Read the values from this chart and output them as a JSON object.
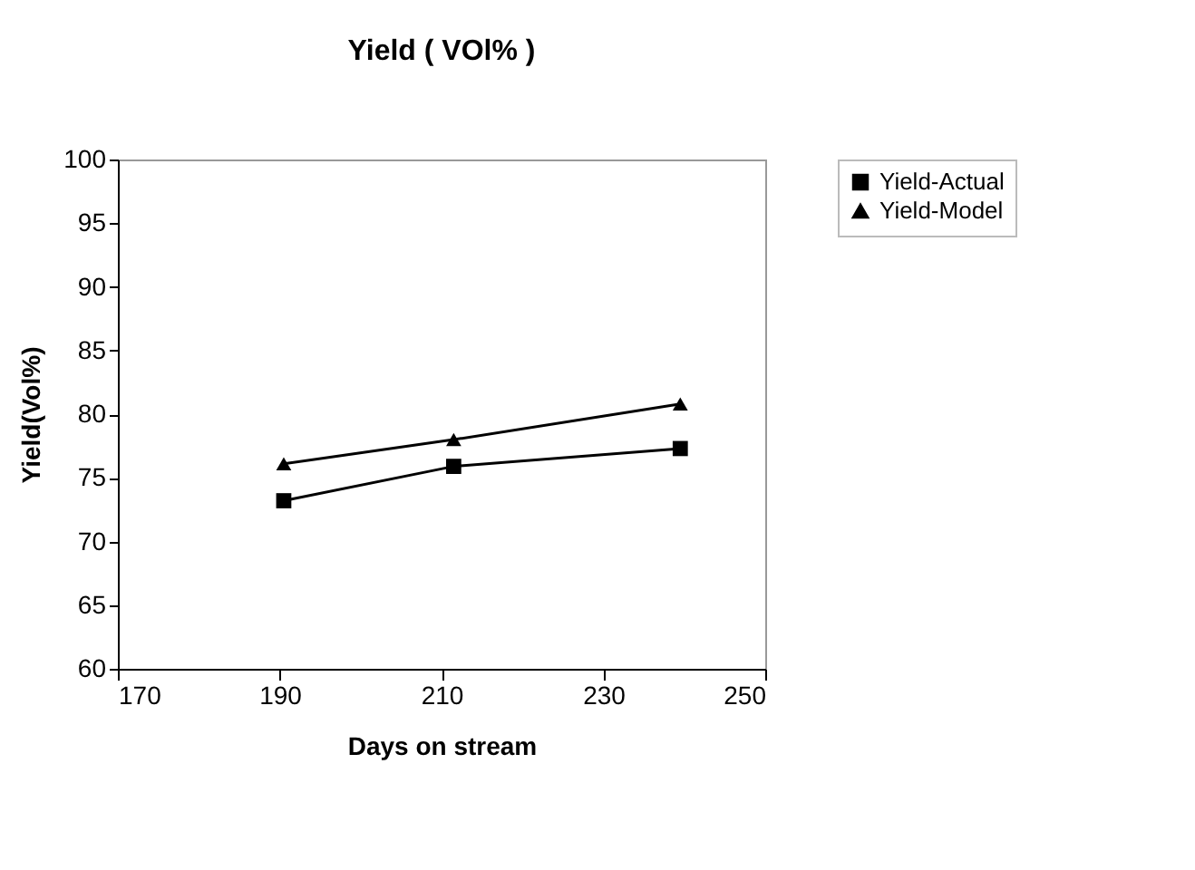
{
  "chart_data": {
    "type": "line",
    "title": "Yield  ( VOl% )",
    "xlabel": "Days on stream",
    "ylabel": "Yield(Vol%)",
    "x": [
      190.5,
      211.5,
      239.5
    ],
    "series": [
      {
        "name": "Yield-Actual",
        "color": "#000000",
        "marker": "square",
        "values": [
          73.2,
          75.9,
          77.3
        ]
      },
      {
        "name": "Yield-Model",
        "color": "#000000",
        "marker": "triangle",
        "values": [
          76.1,
          78.0,
          80.8
        ]
      }
    ],
    "xlim": [
      170,
      250
    ],
    "xticks": [
      170,
      190,
      210,
      230,
      250
    ],
    "ylim": [
      60,
      100
    ],
    "yticks": [
      60,
      65,
      70,
      75,
      80,
      85,
      90,
      95,
      100
    ],
    "grid": false,
    "legend": "right",
    "line_style": "solid"
  }
}
